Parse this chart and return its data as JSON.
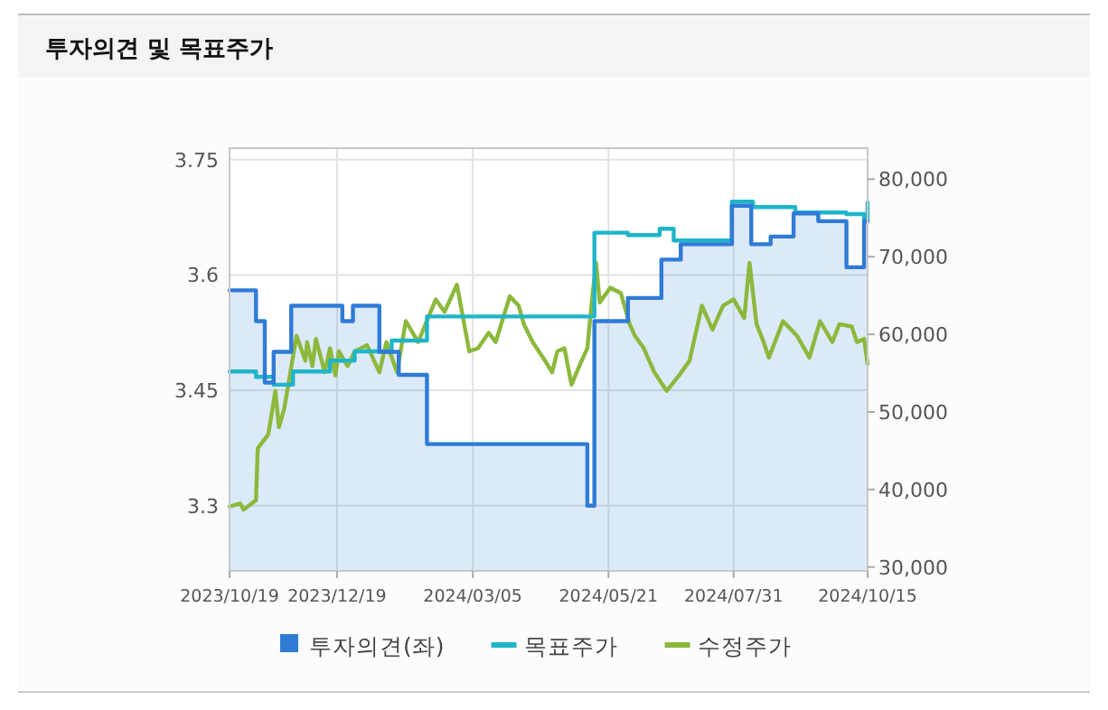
{
  "chart_data": {
    "type": "line",
    "title": "투자의견 및 목표주가",
    "xlim": [
      "2023-10-19",
      "2024-10-15"
    ],
    "xticks": [
      {
        "value": "2023-10-19",
        "label": "2023/10/19"
      },
      {
        "value": "2023-12-19",
        "label": "2023/12/19"
      },
      {
        "value": "2024-03-05",
        "label": "2024/03/05"
      },
      {
        "value": "2024-05-21",
        "label": "2024/05/21"
      },
      {
        "value": "2024-07-31",
        "label": "2024/07/31"
      },
      {
        "value": "2024-10-15",
        "label": "2024/10/15"
      }
    ],
    "ylim": [
      3.215,
      3.765
    ],
    "yticks": [
      3.3,
      3.45,
      3.6,
      3.75
    ],
    "y2lim": [
      29500,
      84000
    ],
    "y2ticks": [
      {
        "value": 30000,
        "label": "30,000"
      },
      {
        "value": 40000,
        "label": "40,000"
      },
      {
        "value": 50000,
        "label": "50,000"
      },
      {
        "value": 60000,
        "label": "60,000"
      },
      {
        "value": 70000,
        "label": "70,000"
      },
      {
        "value": 80000,
        "label": "80,000"
      }
    ],
    "grid": true,
    "legend": "bottom",
    "series": [
      {
        "name": "투자의견(좌)",
        "type": "area",
        "color": "#2f7bd6",
        "x": [
          "2023-10-19",
          "2023-11-03",
          "2023-11-03",
          "2023-11-08",
          "2023-11-08",
          "2023-11-13",
          "2023-11-13",
          "2023-11-23",
          "2023-11-23",
          "2023-12-22",
          "2023-12-22",
          "2023-12-28",
          "2023-12-28",
          "2024-01-12",
          "2024-01-12",
          "2024-01-23",
          "2024-01-23",
          "2024-02-08",
          "2024-02-08",
          "2024-05-09",
          "2024-05-09",
          "2024-05-13",
          "2024-05-13",
          "2024-06-01",
          "2024-06-01",
          "2024-06-20",
          "2024-06-20",
          "2024-07-01",
          "2024-07-01",
          "2024-07-30",
          "2024-07-30",
          "2024-08-10",
          "2024-08-10",
          "2024-08-21",
          "2024-08-21",
          "2024-09-03",
          "2024-09-03",
          "2024-09-17",
          "2024-09-17",
          "2024-10-03",
          "2024-10-03",
          "2024-10-13",
          "2024-10-13",
          "2024-10-15"
        ],
        "values": [
          3.58,
          3.58,
          3.54,
          3.54,
          3.46,
          3.46,
          3.5,
          3.5,
          3.56,
          3.56,
          3.54,
          3.54,
          3.56,
          3.56,
          3.5,
          3.5,
          3.47,
          3.47,
          3.38,
          3.38,
          3.3,
          3.3,
          3.54,
          3.54,
          3.57,
          3.57,
          3.62,
          3.62,
          3.64,
          3.64,
          3.69,
          3.69,
          3.64,
          3.64,
          3.65,
          3.65,
          3.68,
          3.68,
          3.67,
          3.67,
          3.61,
          3.61,
          3.67,
          3.67
        ]
      },
      {
        "name": "목표주가",
        "type": "step",
        "axis": "y2",
        "color": "#1fb5c8",
        "x": [
          "2023-10-19",
          "2023-11-03",
          "2023-11-13",
          "2023-11-24",
          "2023-12-15",
          "2023-12-29",
          "2024-01-19",
          "2024-02-08",
          "2024-05-13",
          "2024-06-01",
          "2024-06-19",
          "2024-06-27",
          "2024-07-30",
          "2024-08-11",
          "2024-09-04",
          "2024-10-03",
          "2024-10-13",
          "2024-10-15"
        ],
        "values": [
          55200,
          54500,
          53500,
          55200,
          56600,
          57800,
          59200,
          62300,
          73100,
          72800,
          73600,
          72100,
          77100,
          76400,
          75700,
          75500,
          74700,
          77000
        ]
      },
      {
        "name": "수정주가",
        "type": "line",
        "axis": "y2",
        "color": "#8cb83c",
        "x": [
          "2023-10-19",
          "2023-10-25",
          "2023-10-27",
          "2023-11-03",
          "2023-11-04",
          "2023-11-10",
          "2023-11-14",
          "2023-11-16",
          "2023-11-19",
          "2023-11-26",
          "2023-12-01",
          "2023-12-02",
          "2023-12-05",
          "2023-12-07",
          "2023-12-12",
          "2023-12-15",
          "2023-12-18",
          "2023-12-20",
          "2023-12-25",
          "2023-12-29",
          "2024-01-05",
          "2024-01-12",
          "2024-01-16",
          "2024-01-22",
          "2024-01-27",
          "2024-02-03",
          "2024-02-13",
          "2024-02-18",
          "2024-02-25",
          "2024-03-03",
          "2024-03-08",
          "2024-03-14",
          "2024-03-18",
          "2024-03-26",
          "2024-03-31",
          "2024-04-03",
          "2024-04-08",
          "2024-04-15",
          "2024-04-19",
          "2024-04-22",
          "2024-04-26",
          "2024-04-30",
          "2024-05-05",
          "2024-05-09",
          "2024-05-12",
          "2024-05-14",
          "2024-05-16",
          "2024-05-22",
          "2024-05-28",
          "2024-06-02",
          "2024-06-05",
          "2024-06-10",
          "2024-06-16",
          "2024-06-23",
          "2024-06-30",
          "2024-07-06",
          "2024-07-13",
          "2024-07-19",
          "2024-07-25",
          "2024-07-31",
          "2024-08-06",
          "2024-08-09",
          "2024-08-13",
          "2024-08-17",
          "2024-08-20",
          "2024-08-28",
          "2024-09-05",
          "2024-09-12",
          "2024-09-18",
          "2024-09-25",
          "2024-09-29",
          "2024-10-06",
          "2024-10-09",
          "2024-10-13",
          "2024-10-15"
        ],
        "values": [
          37800,
          38200,
          37400,
          38600,
          45300,
          47100,
          52700,
          48000,
          50400,
          59800,
          56600,
          59000,
          55900,
          59400,
          55100,
          58200,
          54700,
          57800,
          55900,
          57800,
          58600,
          55100,
          59000,
          55100,
          61700,
          59000,
          64500,
          62900,
          66400,
          57800,
          58200,
          60200,
          59000,
          64900,
          63700,
          61300,
          59000,
          56600,
          55100,
          57800,
          58200,
          53500,
          56200,
          58200,
          65300,
          69200,
          64100,
          66000,
          65300,
          61300,
          59800,
          58200,
          55100,
          52700,
          54700,
          56600,
          63700,
          60600,
          63700,
          64500,
          62100,
          69200,
          61300,
          59000,
          57000,
          61700,
          59800,
          57000,
          61700,
          59000,
          61300,
          61000,
          59000,
          59400,
          56200
        ]
      }
    ]
  }
}
